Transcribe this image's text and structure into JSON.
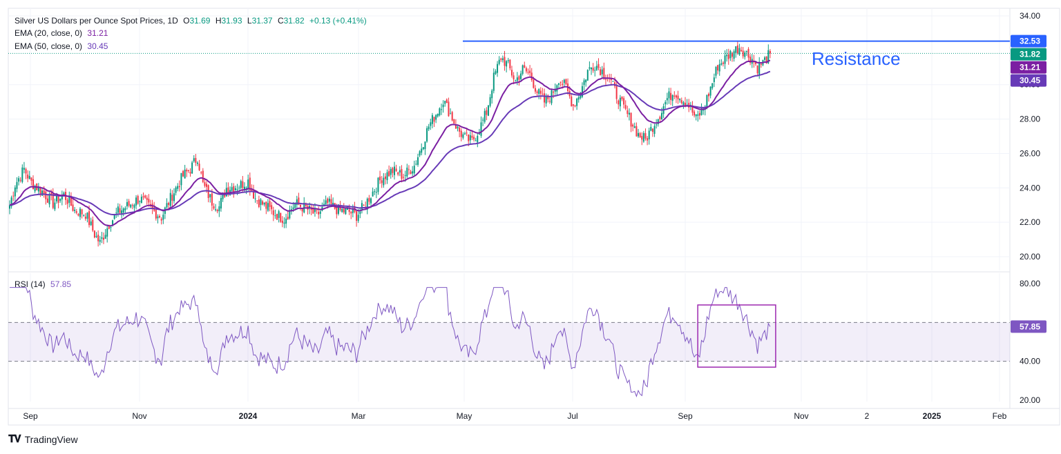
{
  "legend": {
    "title": "Silver US Dollars per Ounce Spot Prices, 1D",
    "open_label": "O",
    "open": "31.69",
    "high_label": "H",
    "high": "31.93",
    "low_label": "L",
    "low": "31.37",
    "close_label": "C",
    "close": "31.82",
    "change": "+0.13 (+0.41%)",
    "ema20_label": "EMA (20, close, 0)",
    "ema20_value": "31.21",
    "ema50_label": "EMA (50, close, 0)",
    "ema50_value": "30.45",
    "rsi_label": "RSI (14)",
    "rsi_value": "57.85"
  },
  "annotation": {
    "text": "Resistance",
    "level": 32.53
  },
  "price_badges": [
    {
      "value": "32.53",
      "color": "#2962ff",
      "y": 32.53
    },
    {
      "value": "31.82",
      "color": "#089981",
      "y": 31.82
    },
    {
      "value": "31.21",
      "color": "#7b1fa2",
      "y": 31.21
    },
    {
      "value": "30.45",
      "color": "#673ab7",
      "y": 30.45
    }
  ],
  "rsi_badge": {
    "value": "57.85",
    "color": "#7e57c2"
  },
  "footer": {
    "brand": "TradingView",
    "logo": "tradingview-logo-icon"
  },
  "colors": {
    "up": "#089981",
    "down": "#f23645",
    "ema20": "#7b1fa2",
    "ema50": "#673ab7",
    "rsi": "#7e57c2",
    "resistance": "#2962ff"
  },
  "chart_data": [
    {
      "type": "candlestick",
      "ylim": [
        19.6,
        34.0
      ],
      "y_ticks": [
        "20.00",
        "22.00",
        "24.00",
        "26.00",
        "28.00",
        "30.00",
        "34.00"
      ],
      "x_ticks": [
        "Sep",
        "Nov",
        "2024",
        "Mar",
        "May",
        "Jul",
        "Sep",
        "Nov",
        "2",
        "2025",
        "Feb"
      ],
      "close_anchors": [
        [
          0,
          23.0
        ],
        [
          3,
          24.2
        ],
        [
          8,
          25.1
        ],
        [
          12,
          24.3
        ],
        [
          18,
          23.8
        ],
        [
          24,
          23.1
        ],
        [
          30,
          23.6
        ],
        [
          36,
          22.7
        ],
        [
          42,
          22.5
        ],
        [
          47,
          21.3
        ],
        [
          50,
          20.8
        ],
        [
          55,
          21.9
        ],
        [
          60,
          22.6
        ],
        [
          66,
          23.0
        ],
        [
          72,
          23.4
        ],
        [
          78,
          22.8
        ],
        [
          84,
          22.3
        ],
        [
          90,
          23.6
        ],
        [
          96,
          24.7
        ],
        [
          100,
          25.1
        ],
        [
          104,
          25.8
        ],
        [
          107,
          24.2
        ],
        [
          112,
          23.2
        ],
        [
          116,
          22.9
        ],
        [
          120,
          24.0
        ],
        [
          126,
          24.1
        ],
        [
          132,
          24.4
        ],
        [
          136,
          23.4
        ],
        [
          142,
          22.9
        ],
        [
          147,
          22.5
        ],
        [
          152,
          22.2
        ],
        [
          158,
          23.1
        ],
        [
          164,
          22.8
        ],
        [
          170,
          22.4
        ],
        [
          176,
          23.1
        ],
        [
          182,
          22.7
        ],
        [
          188,
          22.6
        ],
        [
          192,
          22.4
        ],
        [
          196,
          22.9
        ],
        [
          200,
          23.6
        ],
        [
          206,
          24.6
        ],
        [
          212,
          25.0
        ],
        [
          218,
          24.7
        ],
        [
          224,
          25.3
        ],
        [
          228,
          26.4
        ],
        [
          232,
          27.6
        ],
        [
          236,
          28.3
        ],
        [
          240,
          29.1
        ],
        [
          244,
          28.3
        ],
        [
          248,
          27.4
        ],
        [
          252,
          26.9
        ],
        [
          256,
          26.7
        ],
        [
          260,
          27.4
        ],
        [
          264,
          28.4
        ],
        [
          268,
          30.4
        ],
        [
          272,
          31.6
        ],
        [
          276,
          31.1
        ],
        [
          280,
          30.2
        ],
        [
          284,
          30.9
        ],
        [
          288,
          30.6
        ],
        [
          292,
          29.6
        ],
        [
          296,
          29.0
        ],
        [
          300,
          29.4
        ],
        [
          304,
          30.4
        ],
        [
          308,
          29.8
        ],
        [
          312,
          28.8
        ],
        [
          316,
          29.6
        ],
        [
          320,
          30.8
        ],
        [
          324,
          31.2
        ],
        [
          328,
          30.8
        ],
        [
          332,
          30.4
        ],
        [
          336,
          29.4
        ],
        [
          340,
          28.6
        ],
        [
          344,
          27.9
        ],
        [
          348,
          27.1
        ],
        [
          352,
          26.8
        ],
        [
          356,
          27.6
        ],
        [
          360,
          28.3
        ],
        [
          364,
          29.2
        ],
        [
          368,
          29.6
        ],
        [
          372,
          29.2
        ],
        [
          376,
          28.8
        ],
        [
          380,
          28.0
        ],
        [
          384,
          28.6
        ],
        [
          388,
          29.8
        ],
        [
          392,
          31.1
        ],
        [
          396,
          31.5
        ],
        [
          400,
          31.9
        ],
        [
          404,
          32.2
        ],
        [
          408,
          31.8
        ],
        [
          411,
          31.5
        ],
        [
          414,
          31.0
        ],
        [
          418,
          31.4
        ],
        [
          421,
          31.82
        ]
      ],
      "ema20_last": 31.21,
      "ema50_last": 30.45,
      "resistance": 32.53,
      "annotations": [
        "Resistance"
      ]
    },
    {
      "type": "line",
      "name": "RSI (14)",
      "ylim": [
        20,
        80
      ],
      "y_ticks": [
        "20.00",
        "40.00",
        "80.00"
      ],
      "band": [
        40,
        60
      ],
      "last": 57.85,
      "highlight_box": {
        "x_from": 384,
        "x_to": 421,
        "y_from": 37,
        "y_to": 69
      }
    }
  ]
}
